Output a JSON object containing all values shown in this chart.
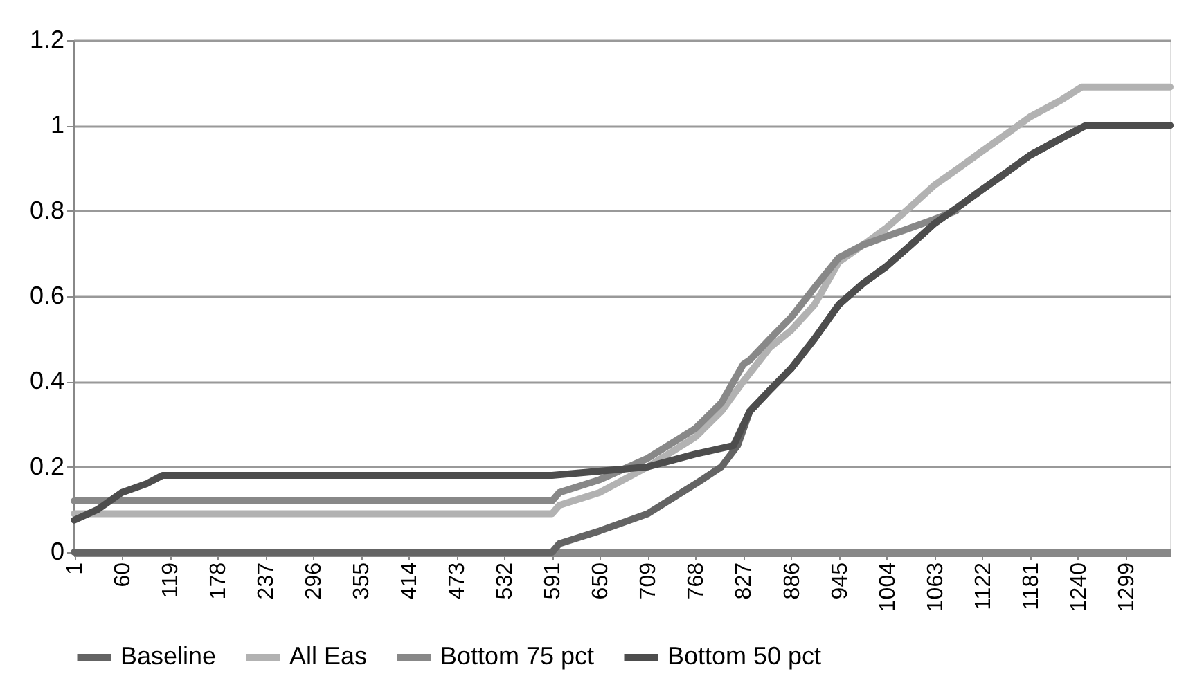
{
  "chart_data": {
    "type": "line",
    "xlim": [
      0,
      1354
    ],
    "xticks": [
      1,
      60,
      119,
      178,
      237,
      296,
      355,
      414,
      473,
      532,
      591,
      650,
      709,
      768,
      827,
      886,
      945,
      1004,
      1063,
      1122,
      1181,
      1240,
      1299
    ],
    "ylim": [
      0,
      1.2
    ],
    "yticks": [
      0,
      0.2,
      0.4,
      0.6,
      0.8,
      1,
      1.2
    ],
    "grid": "y",
    "legend": "bottom",
    "marker": "none",
    "line_style": "solid",
    "series": [
      {
        "name": "Baseline",
        "color": "#646464",
        "x": [
          1,
          591,
          600,
          650,
          709,
          768,
          800,
          820,
          835,
          860,
          886,
          915,
          945,
          975,
          1004,
          1034,
          1063,
          1093,
          1122,
          1152,
          1181,
          1210,
          1240,
          1250,
          1354
        ],
        "values": [
          0,
          0,
          0.02,
          0.05,
          0.09,
          0.16,
          0.2,
          0.25,
          0.33,
          0.38,
          0.43,
          0.5,
          0.58,
          0.63,
          0.67,
          0.72,
          0.77,
          0.81,
          0.85,
          0.89,
          0.93,
          0.96,
          0.99,
          1.0,
          1.0
        ]
      },
      {
        "name": "All Eas",
        "color": "#b2b2b2",
        "x": [
          1,
          591,
          600,
          650,
          709,
          768,
          800,
          827,
          860,
          886,
          915,
          945,
          975,
          1004,
          1034,
          1063,
          1093,
          1122,
          1152,
          1181,
          1220,
          1245,
          1354
        ],
        "values": [
          0.09,
          0.09,
          0.11,
          0.14,
          0.2,
          0.27,
          0.33,
          0.4,
          0.48,
          0.52,
          0.58,
          0.68,
          0.72,
          0.76,
          0.81,
          0.86,
          0.9,
          0.94,
          0.98,
          1.02,
          1.06,
          1.09,
          1.09
        ]
      },
      {
        "name": "Bottom 75 pct",
        "color": "#888888",
        "x": [
          1,
          591,
          600,
          650,
          709,
          768,
          800,
          827,
          835,
          860,
          886,
          915,
          945,
          975,
          1004,
          1034,
          1063,
          1090
        ],
        "values": [
          0.12,
          0.12,
          0.14,
          0.17,
          0.22,
          0.29,
          0.35,
          0.44,
          0.45,
          0.5,
          0.55,
          0.62,
          0.69,
          0.72,
          0.74,
          0.76,
          0.78,
          0.8
        ]
      },
      {
        "name": "Bottom 50 pct",
        "color": "#4d4d4d",
        "x": [
          1,
          30,
          60,
          90,
          110,
          591,
          709,
          768,
          815,
          835,
          860,
          886,
          915,
          945,
          975,
          1004,
          1034,
          1063,
          1093,
          1122,
          1152,
          1181,
          1210,
          1240,
          1250,
          1354
        ],
        "values": [
          0.075,
          0.1,
          0.14,
          0.16,
          0.18,
          0.18,
          0.2,
          0.23,
          0.25,
          0.33,
          0.38,
          0.43,
          0.5,
          0.58,
          0.63,
          0.67,
          0.72,
          0.77,
          0.81,
          0.85,
          0.89,
          0.93,
          0.96,
          0.99,
          1.0,
          1.0
        ]
      }
    ]
  }
}
